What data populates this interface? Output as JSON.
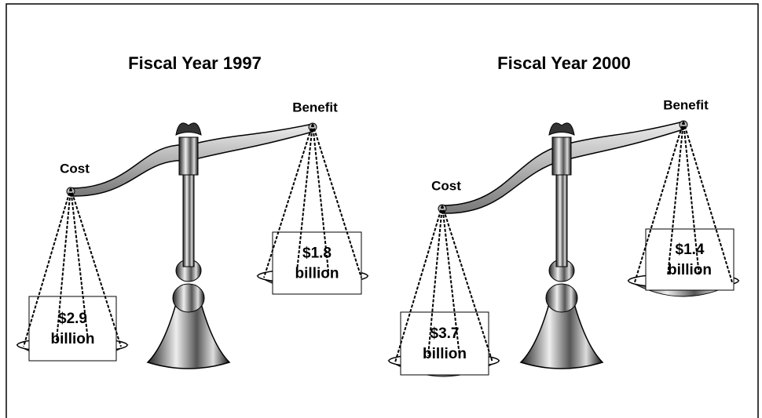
{
  "scales": [
    {
      "title": "Fiscal Year 1997",
      "cost_label": "Cost",
      "benefit_label": "Benefit",
      "cost_amount": "$2.9",
      "cost_unit": "billion",
      "benefit_amount": "$1.8",
      "benefit_unit": "billion"
    },
    {
      "title": "Fiscal Year 2000",
      "cost_label": "Cost",
      "benefit_label": "Benefit",
      "cost_amount": "$3.7",
      "cost_unit": "billion",
      "benefit_amount": "$1.4",
      "benefit_unit": "billion"
    }
  ]
}
